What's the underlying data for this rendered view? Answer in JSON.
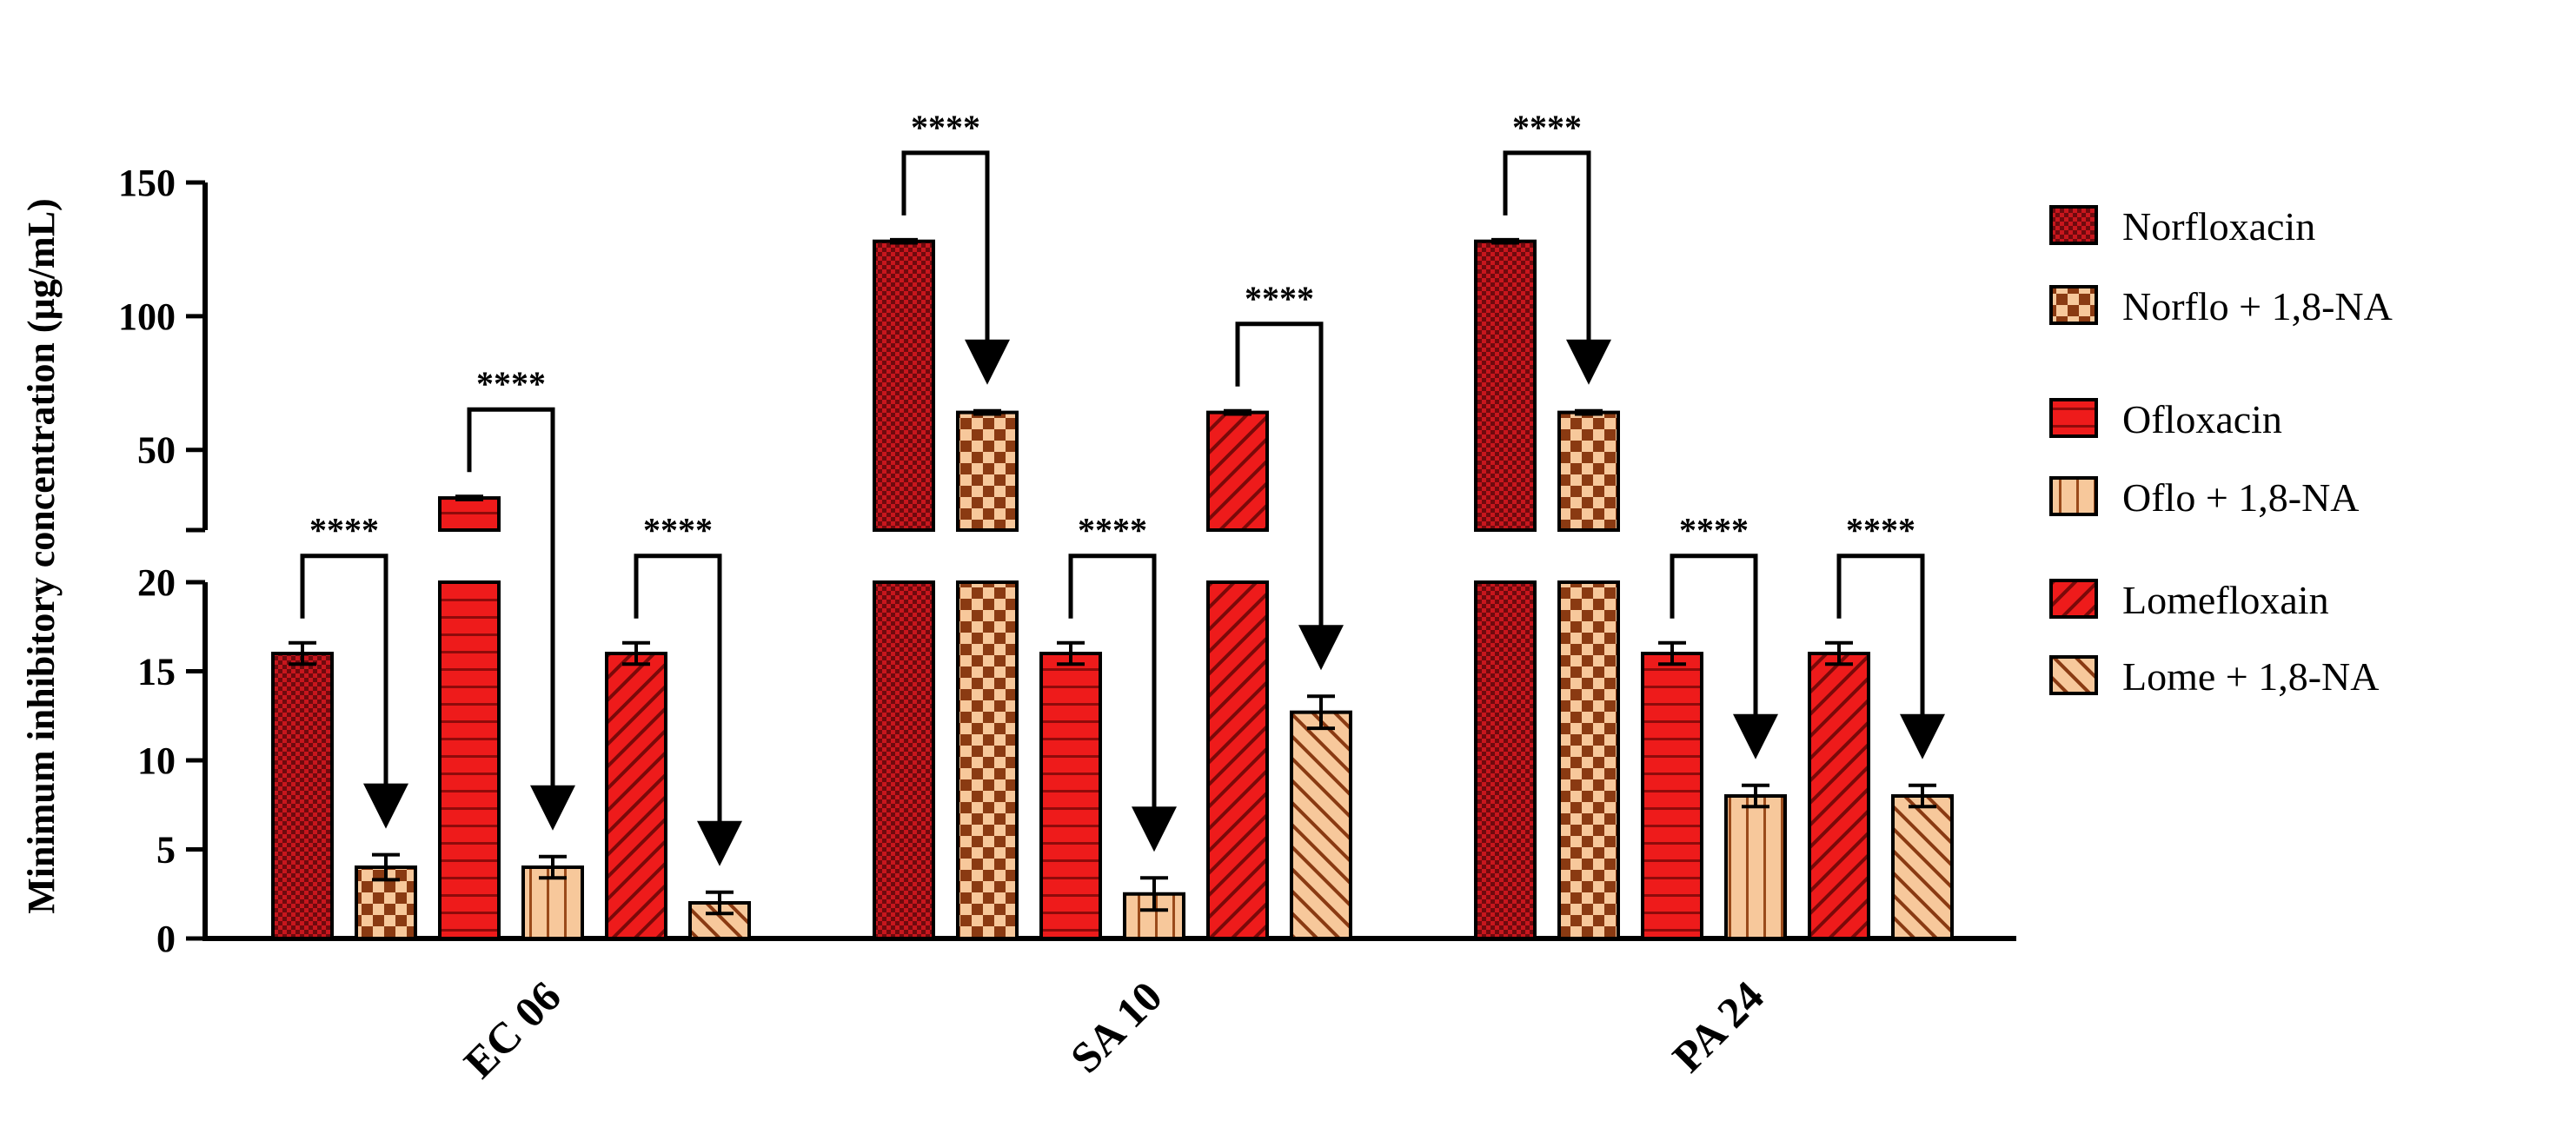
{
  "chart_data": {
    "type": "bar",
    "ylabel": "Minimum inhibitory concentration (µg/mL)",
    "xlabel": "",
    "categories": [
      "EC 06",
      "SA 10",
      "PA 24"
    ],
    "y_axis": {
      "broken": true,
      "lower_range": [
        0,
        20
      ],
      "upper_range": [
        20,
        150
      ],
      "lower_ticks": [
        "0",
        "5",
        "10",
        "15",
        "20"
      ],
      "lower_tick_values": [
        0,
        5,
        10,
        15,
        20
      ],
      "upper_ticks": [
        "50",
        "100",
        "150"
      ],
      "upper_tick_values": [
        50,
        100,
        150
      ]
    },
    "series": [
      {
        "name": "Norfloxacin",
        "values": [
          16,
          128,
          128
        ],
        "errors": [
          0.6,
          0.6,
          0.6
        ],
        "fill": "#c8161d",
        "pattern": "dots"
      },
      {
        "name": "Norflo + 1,8-NA",
        "values": [
          4,
          64,
          64
        ],
        "errors": [
          0.7,
          0.6,
          0.6
        ],
        "fill": "#f7c89b",
        "pattern": "checker"
      },
      {
        "name": "Ofloxacin",
        "values": [
          32,
          16,
          16
        ],
        "errors": [
          0.6,
          0.6,
          0.6
        ],
        "fill": "#ee1b1b",
        "pattern": "hlines"
      },
      {
        "name": "Oflo + 1,8-NA",
        "values": [
          4,
          2.5,
          8
        ],
        "errors": [
          0.6,
          0.9,
          0.6
        ],
        "fill": "#f7c89b",
        "pattern": "vlines"
      },
      {
        "name": "Lomefloxain",
        "values": [
          16,
          64,
          16
        ],
        "errors": [
          0.6,
          0.6,
          0.6
        ],
        "fill": "#ee1b1b",
        "pattern": "diag"
      },
      {
        "name": "Lome + 1,8-NA",
        "values": [
          2,
          12.7,
          8
        ],
        "errors": [
          0.6,
          0.9,
          0.6
        ],
        "fill": "#f7c89b",
        "pattern": "diag"
      }
    ],
    "comparisons": [
      {
        "category": "EC 06",
        "from_series": 0,
        "to_series": 1,
        "label": "****"
      },
      {
        "category": "EC 06",
        "from_series": 2,
        "to_series": 3,
        "label": "****"
      },
      {
        "category": "EC 06",
        "from_series": 4,
        "to_series": 5,
        "label": "****"
      },
      {
        "category": "SA 10",
        "from_series": 0,
        "to_series": 1,
        "label": "****"
      },
      {
        "category": "SA 10",
        "from_series": 2,
        "to_series": 3,
        "label": "****"
      },
      {
        "category": "SA 10",
        "from_series": 4,
        "to_series": 5,
        "label": "****"
      },
      {
        "category": "PA 24",
        "from_series": 0,
        "to_series": 1,
        "label": "****"
      },
      {
        "category": "PA 24",
        "from_series": 2,
        "to_series": 3,
        "label": "****"
      },
      {
        "category": "PA 24",
        "from_series": 4,
        "to_series": 5,
        "label": "****"
      }
    ],
    "legend_position": "right",
    "grid": false
  }
}
